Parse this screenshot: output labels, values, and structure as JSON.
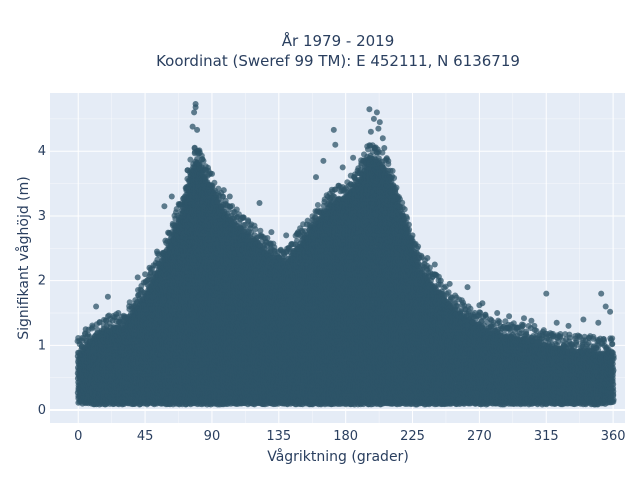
{
  "chart_data": {
    "type": "scatter",
    "title_line1": "År 1979 - 2019",
    "title_line2": "Koordinat (Sweref 99 TM): E 452111, N 6136719",
    "xlabel": "Vågriktning (grader)",
    "ylabel": "Signifikant våghöjd (m)",
    "xlim": [
      -19,
      368
    ],
    "ylim": [
      -0.2,
      4.9
    ],
    "x_ticks": [
      0,
      45,
      90,
      135,
      180,
      225,
      270,
      315,
      360
    ],
    "x_tick_labels": [
      "0",
      "45",
      "90",
      "135",
      "180",
      "225",
      "270",
      "315",
      "360"
    ],
    "y_ticks": [
      0,
      1,
      2,
      3,
      4
    ],
    "y_tick_labels": [
      "0",
      "1",
      "2",
      "3",
      "4"
    ],
    "grid": true,
    "series": [
      {
        "color": "#2e5468",
        "envelope": {
          "x": [
            0,
            10,
            20,
            30,
            40,
            50,
            60,
            70,
            75,
            80,
            90,
            100,
            110,
            120,
            130,
            140,
            150,
            160,
            170,
            180,
            190,
            195,
            200,
            210,
            220,
            230,
            240,
            250,
            260,
            270,
            280,
            290,
            300,
            310,
            320,
            330,
            340,
            350,
            360
          ],
          "ymax": [
            0.9,
            1.1,
            1.25,
            1.3,
            1.6,
            2.0,
            2.5,
            3.1,
            3.6,
            3.9,
            3.4,
            3.0,
            2.8,
            2.6,
            2.4,
            2.3,
            2.6,
            2.9,
            3.2,
            3.3,
            3.6,
            3.9,
            3.9,
            3.6,
            2.9,
            2.2,
            1.9,
            1.6,
            1.45,
            1.3,
            1.2,
            1.15,
            1.1,
            1.05,
            1.0,
            0.95,
            0.95,
            0.9,
            0.9
          ],
          "ymin": [
            0.12,
            0.1,
            0.1,
            0.1,
            0.1,
            0.1,
            0.1,
            0.1,
            0.1,
            0.1,
            0.1,
            0.1,
            0.1,
            0.1,
            0.1,
            0.1,
            0.1,
            0.1,
            0.1,
            0.1,
            0.1,
            0.1,
            0.1,
            0.1,
            0.1,
            0.1,
            0.1,
            0.1,
            0.1,
            0.1,
            0.1,
            0.1,
            0.1,
            0.1,
            0.1,
            0.1,
            0.1,
            0.1,
            0.12
          ]
        },
        "outliers": [
          [
            79,
            4.73
          ],
          [
            79,
            4.68
          ],
          [
            78,
            4.6
          ],
          [
            77,
            4.38
          ],
          [
            80,
            4.33
          ],
          [
            81,
            4.0
          ],
          [
            196,
            4.65
          ],
          [
            201,
            4.6
          ],
          [
            199,
            4.5
          ],
          [
            203,
            4.45
          ],
          [
            202,
            4.35
          ],
          [
            197,
            4.3
          ],
          [
            205,
            4.2
          ],
          [
            206,
            4.05
          ],
          [
            172,
            4.33
          ],
          [
            173,
            4.1
          ],
          [
            165,
            3.85
          ],
          [
            160,
            3.6
          ],
          [
            178,
            3.75
          ],
          [
            185,
            3.9
          ],
          [
            188,
            3.7
          ],
          [
            63,
            3.3
          ],
          [
            58,
            3.15
          ],
          [
            90,
            3.65
          ],
          [
            98,
            3.4
          ],
          [
            102,
            3.3
          ],
          [
            122,
            3.2
          ],
          [
            130,
            2.75
          ],
          [
            140,
            2.7
          ],
          [
            148,
            2.75
          ],
          [
            225,
            2.7
          ],
          [
            228,
            2.5
          ],
          [
            235,
            2.35
          ],
          [
            240,
            2.25
          ],
          [
            244,
            2.0
          ],
          [
            250,
            1.95
          ],
          [
            262,
            1.9
          ],
          [
            270,
            1.62
          ],
          [
            272,
            1.65
          ],
          [
            282,
            1.5
          ],
          [
            290,
            1.45
          ],
          [
            300,
            1.42
          ],
          [
            305,
            1.38
          ],
          [
            315,
            1.8
          ],
          [
            307,
            1.3
          ],
          [
            322,
            1.35
          ],
          [
            330,
            1.3
          ],
          [
            340,
            1.4
          ],
          [
            352,
            1.8
          ],
          [
            355,
            1.6
          ],
          [
            358,
            1.52
          ],
          [
            350,
            1.35
          ],
          [
            20,
            1.75
          ],
          [
            12,
            1.6
          ],
          [
            5,
            1.25
          ],
          [
            27,
            1.5
          ],
          [
            39,
            1.65
          ],
          [
            40,
            2.05
          ],
          [
            48,
            2.2
          ],
          [
            53,
            2.45
          ],
          [
            45,
            2.1
          ]
        ]
      }
    ]
  }
}
